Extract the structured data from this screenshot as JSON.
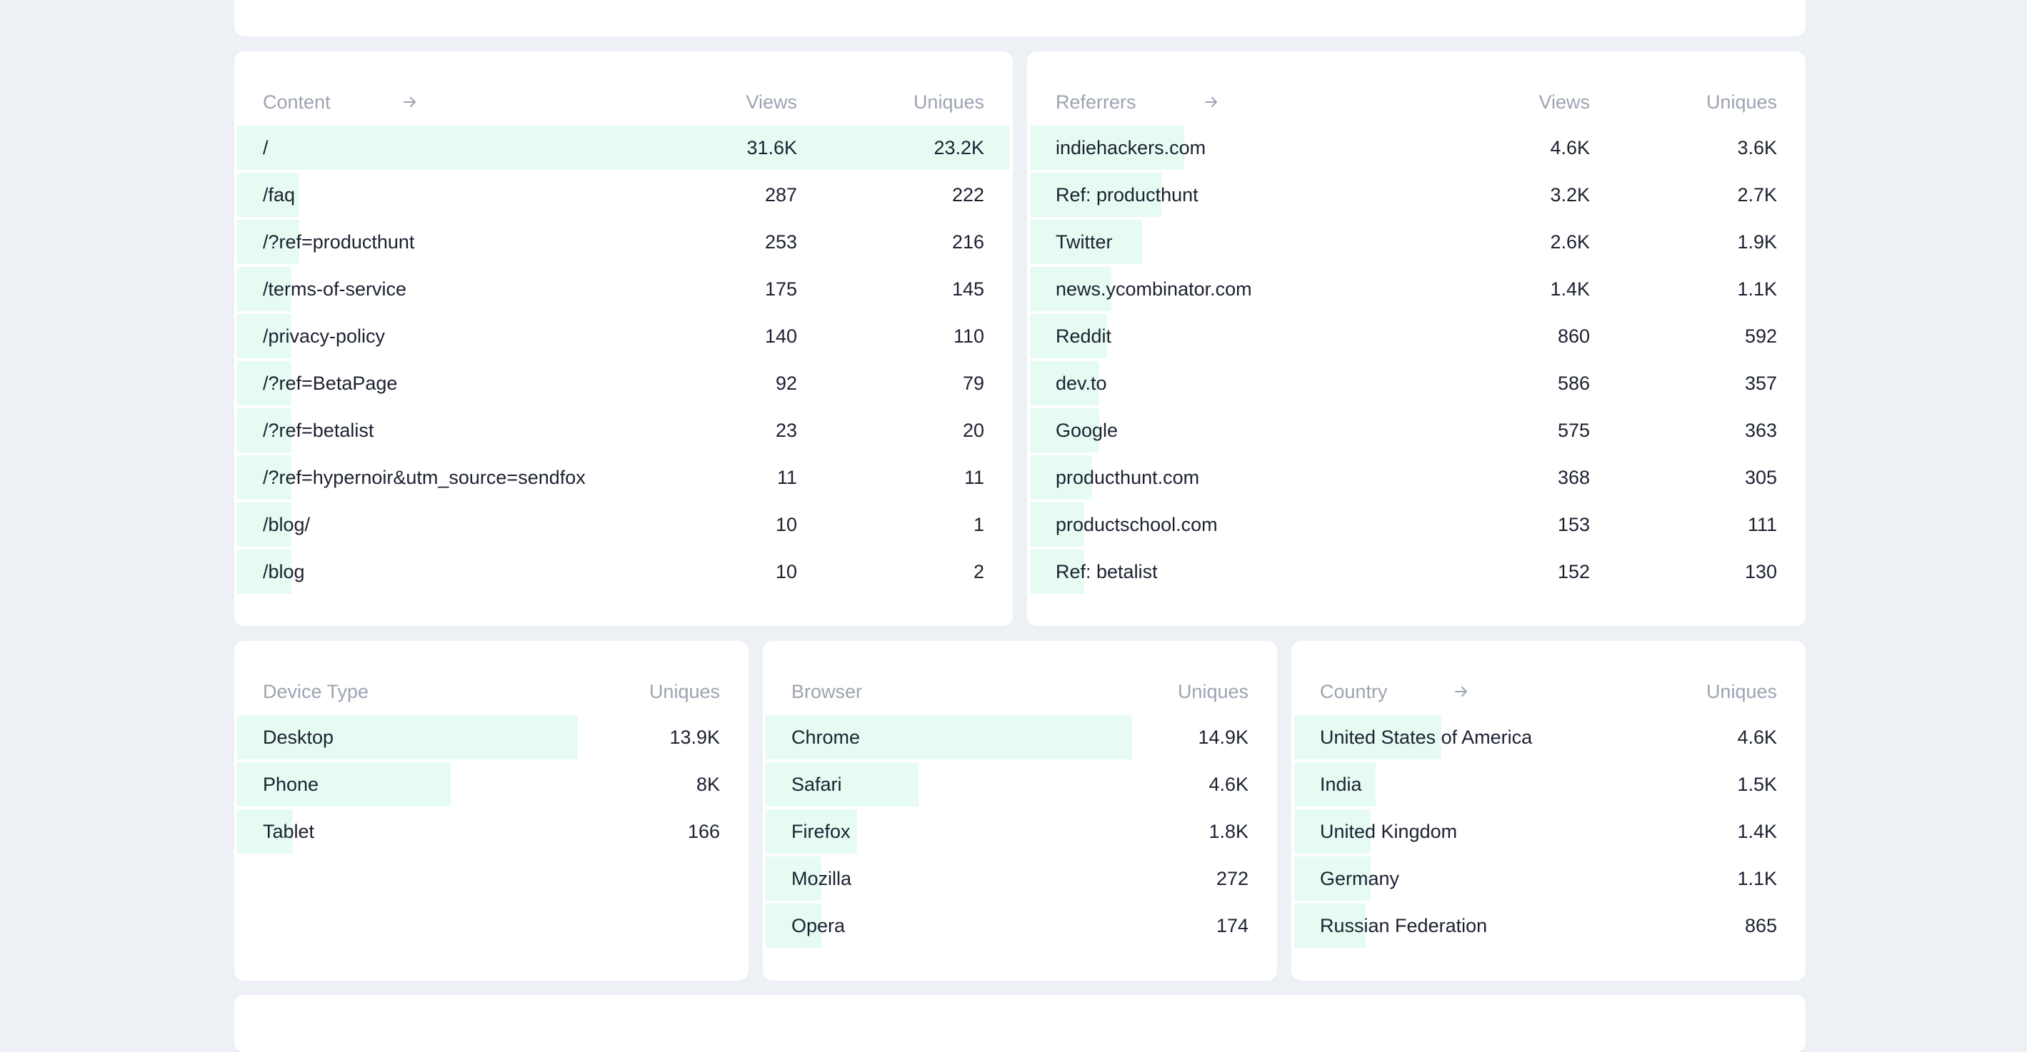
{
  "content": {
    "header": {
      "label": "Content",
      "views": "Views",
      "uniques": "Uniques"
    },
    "rows": [
      {
        "label": "/",
        "views": "31.6K",
        "uniques": "23.2K",
        "share": 1.0
      },
      {
        "label": "/faq",
        "views": "287",
        "uniques": "222",
        "share": 0.08
      },
      {
        "label": "/?ref=producthunt",
        "views": "253",
        "uniques": "216",
        "share": 0.08
      },
      {
        "label": "/terms-of-service",
        "views": "175",
        "uniques": "145",
        "share": 0.07
      },
      {
        "label": "/privacy-policy",
        "views": "140",
        "uniques": "110",
        "share": 0.07
      },
      {
        "label": "/?ref=BetaPage",
        "views": "92",
        "uniques": "79",
        "share": 0.07
      },
      {
        "label": "/?ref=betalist",
        "views": "23",
        "uniques": "20",
        "share": 0.07
      },
      {
        "label": "/?ref=hypernoir&utm_source=sendfox",
        "views": "11",
        "uniques": "11",
        "share": 0.07
      },
      {
        "label": "/blog/",
        "views": "10",
        "uniques": "1",
        "share": 0.07
      },
      {
        "label": "/blog",
        "views": "10",
        "uniques": "2",
        "share": 0.07
      }
    ]
  },
  "referrers": {
    "header": {
      "label": "Referrers",
      "views": "Views",
      "uniques": "Uniques"
    },
    "rows": [
      {
        "label": "indiehackers.com",
        "views": "4.6K",
        "uniques": "3.6K",
        "share": 0.2
      },
      {
        "label": "Ref: producthunt",
        "views": "3.2K",
        "uniques": "2.7K",
        "share": 0.17
      },
      {
        "label": "Twitter",
        "views": "2.6K",
        "uniques": "1.9K",
        "share": 0.145
      },
      {
        "label": "news.ycombinator.com",
        "views": "1.4K",
        "uniques": "1.1K",
        "share": 0.105
      },
      {
        "label": "Reddit",
        "views": "860",
        "uniques": "592",
        "share": 0.1
      },
      {
        "label": "dev.to",
        "views": "586",
        "uniques": "357",
        "share": 0.09
      },
      {
        "label": "Google",
        "views": "575",
        "uniques": "363",
        "share": 0.09
      },
      {
        "label": "producthunt.com",
        "views": "368",
        "uniques": "305",
        "share": 0.08
      },
      {
        "label": "productschool.com",
        "views": "153",
        "uniques": "111",
        "share": 0.07
      },
      {
        "label": "Ref: betalist",
        "views": "152",
        "uniques": "130",
        "share": 0.07
      }
    ]
  },
  "device": {
    "header": {
      "label": "Device Type",
      "uniques": "Uniques"
    },
    "rows": [
      {
        "label": "Desktop",
        "uniques": "13.9K",
        "share": 0.67
      },
      {
        "label": "Phone",
        "uniques": "8K",
        "share": 0.42
      },
      {
        "label": "Tablet",
        "uniques": "166",
        "share": 0.11
      }
    ]
  },
  "browser": {
    "header": {
      "label": "Browser",
      "uniques": "Uniques"
    },
    "rows": [
      {
        "label": "Chrome",
        "uniques": "14.9K",
        "share": 0.72
      },
      {
        "label": "Safari",
        "uniques": "4.6K",
        "share": 0.3
      },
      {
        "label": "Firefox",
        "uniques": "1.8K",
        "share": 0.18
      },
      {
        "label": "Mozilla",
        "uniques": "272",
        "share": 0.11
      },
      {
        "label": "Opera",
        "uniques": "174",
        "share": 0.11
      }
    ]
  },
  "country": {
    "header": {
      "label": "Country",
      "uniques": "Uniques"
    },
    "rows": [
      {
        "label": "United States of America",
        "uniques": "4.6K",
        "share": 0.29
      },
      {
        "label": "India",
        "uniques": "1.5K",
        "share": 0.16
      },
      {
        "label": "United Kingdom",
        "uniques": "1.4K",
        "share": 0.15
      },
      {
        "label": "Germany",
        "uniques": "1.1K",
        "share": 0.15
      },
      {
        "label": "Russian Federation",
        "uniques": "865",
        "share": 0.14
      }
    ]
  },
  "colors": {
    "background": "#edf1f6",
    "card": "#ffffff",
    "bar": "#e6fcf3",
    "header_text": "#9ca3b1",
    "text": "#1c2130"
  },
  "icons": {
    "header_link": "arrow-right-icon"
  }
}
